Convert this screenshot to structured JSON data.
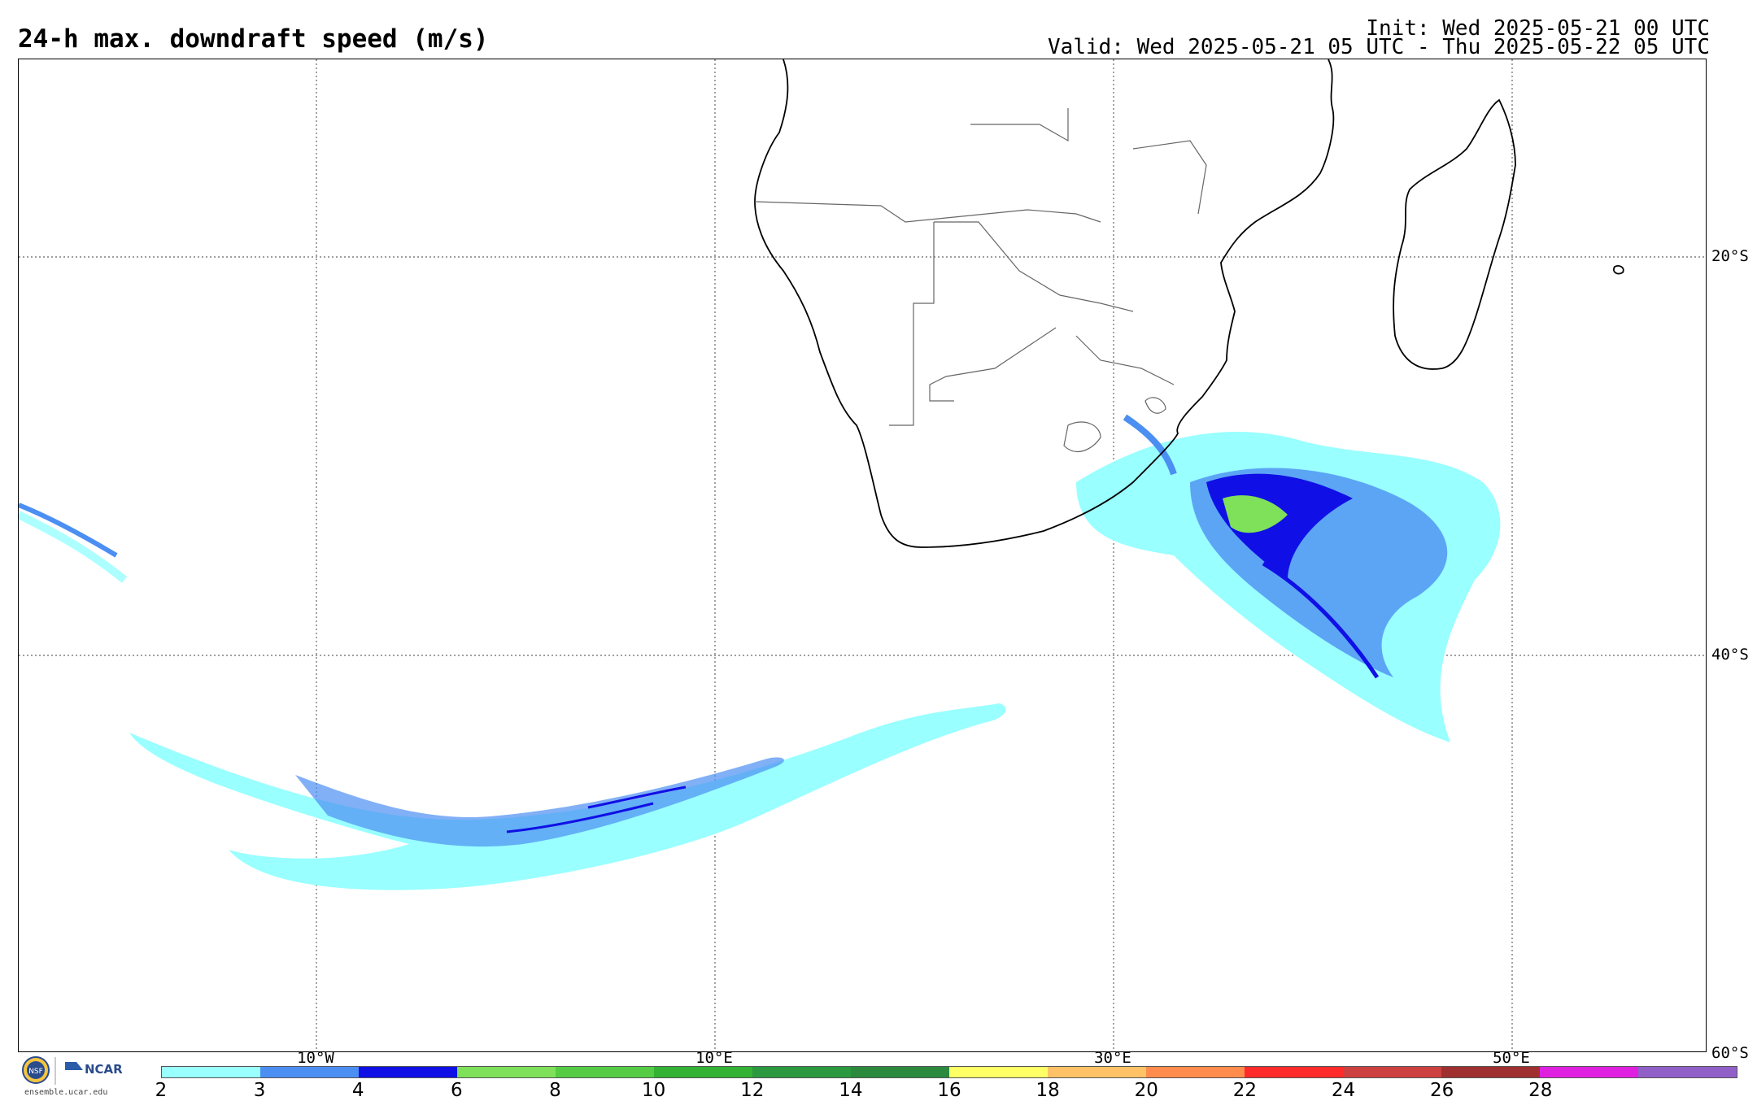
{
  "header": {
    "title": "24-h max. downdraft speed (m/s)",
    "init": "Init: Wed 2025-05-21 00 UTC",
    "valid": "Valid: Wed 2025-05-21 05 UTC - Thu 2025-05-22 05 UTC"
  },
  "map": {
    "lat_labels": [
      "20°S",
      "40°S",
      "60°S"
    ],
    "lon_labels": [
      "10°W",
      "10°E",
      "30°E",
      "50°E"
    ],
    "land_outline_color": "#000000",
    "border_color": "#666666",
    "gridline_style": "dotted"
  },
  "colorbar": {
    "ticks": [
      "2",
      "3",
      "4",
      "6",
      "8",
      "10",
      "12",
      "14",
      "16",
      "18",
      "20",
      "22",
      "24",
      "26",
      "28"
    ],
    "colors": [
      "#99ffff",
      "#4c8ff2",
      "#1010e6",
      "#7fe05a",
      "#55cc44",
      "#33b233",
      "#2a9940",
      "#2b8a3e",
      "#ffff66",
      "#ffc266",
      "#ff8c4c",
      "#ff2a2a",
      "#cc4040",
      "#a03030",
      "#e020e0",
      "#9060c8"
    ]
  },
  "logo": {
    "nsf": "NSF",
    "ncar": "NCAR",
    "url": "ensemble.ucar.edu"
  }
}
